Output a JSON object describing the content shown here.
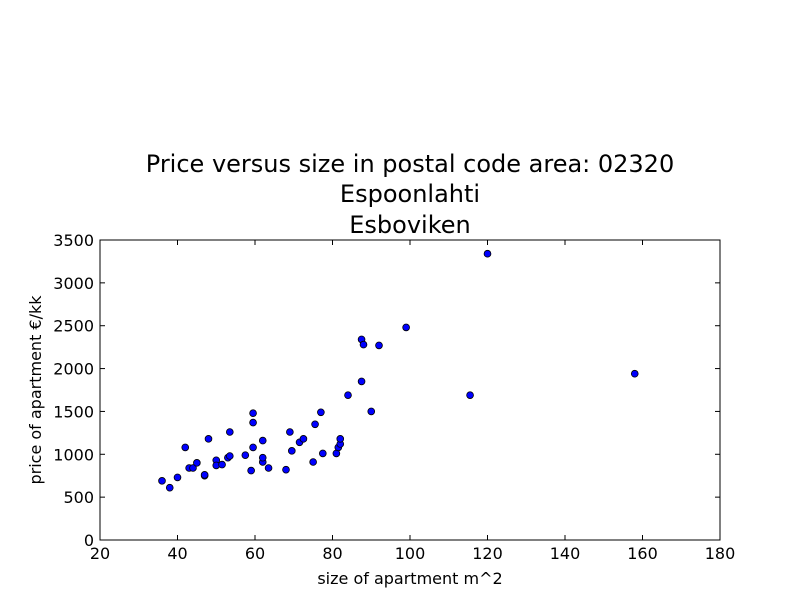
{
  "chart_data": {
    "type": "scatter",
    "title_lines": [
      "Price versus size in postal code area: 02320",
      "Espoonlahti",
      "Esboviken"
    ],
    "xlabel": "size of apartment m^2",
    "ylabel": "price of apartment €/kk",
    "xlim": [
      20,
      180
    ],
    "ylim": [
      0,
      3500
    ],
    "xticks": [
      20,
      40,
      60,
      80,
      100,
      120,
      140,
      160,
      180
    ],
    "yticks": [
      0,
      500,
      1000,
      1500,
      2000,
      2500,
      3000,
      3500
    ],
    "grid": false,
    "marker_color": "#0000ff",
    "marker_edge_color": "#000000",
    "points": [
      {
        "x": 36,
        "y": 690
      },
      {
        "x": 38,
        "y": 610
      },
      {
        "x": 40,
        "y": 730
      },
      {
        "x": 42,
        "y": 1080
      },
      {
        "x": 43,
        "y": 840
      },
      {
        "x": 44,
        "y": 840
      },
      {
        "x": 45,
        "y": 900
      },
      {
        "x": 47,
        "y": 750
      },
      {
        "x": 47,
        "y": 760
      },
      {
        "x": 48,
        "y": 1180
      },
      {
        "x": 50,
        "y": 930
      },
      {
        "x": 50,
        "y": 870
      },
      {
        "x": 51.5,
        "y": 880
      },
      {
        "x": 53,
        "y": 960
      },
      {
        "x": 53.5,
        "y": 980
      },
      {
        "x": 53.5,
        "y": 1260
      },
      {
        "x": 57.5,
        "y": 990
      },
      {
        "x": 59,
        "y": 810
      },
      {
        "x": 59.5,
        "y": 1370
      },
      {
        "x": 59.5,
        "y": 1480
      },
      {
        "x": 59.5,
        "y": 1080
      },
      {
        "x": 62,
        "y": 910
      },
      {
        "x": 62,
        "y": 960
      },
      {
        "x": 62,
        "y": 1160
      },
      {
        "x": 63.5,
        "y": 840
      },
      {
        "x": 68,
        "y": 820
      },
      {
        "x": 69,
        "y": 1260
      },
      {
        "x": 69.5,
        "y": 1040
      },
      {
        "x": 71.5,
        "y": 1140
      },
      {
        "x": 72.5,
        "y": 1180
      },
      {
        "x": 75,
        "y": 910
      },
      {
        "x": 75.5,
        "y": 1350
      },
      {
        "x": 77,
        "y": 1490
      },
      {
        "x": 77.5,
        "y": 1010
      },
      {
        "x": 81,
        "y": 1010
      },
      {
        "x": 81.5,
        "y": 1080
      },
      {
        "x": 82,
        "y": 1120
      },
      {
        "x": 82,
        "y": 1180
      },
      {
        "x": 84,
        "y": 1690
      },
      {
        "x": 87.5,
        "y": 1850
      },
      {
        "x": 87.5,
        "y": 2340
      },
      {
        "x": 88,
        "y": 2280
      },
      {
        "x": 90,
        "y": 1500
      },
      {
        "x": 92,
        "y": 2270
      },
      {
        "x": 99,
        "y": 2480
      },
      {
        "x": 115.5,
        "y": 1690
      },
      {
        "x": 120,
        "y": 3340
      },
      {
        "x": 158,
        "y": 1940
      }
    ]
  }
}
